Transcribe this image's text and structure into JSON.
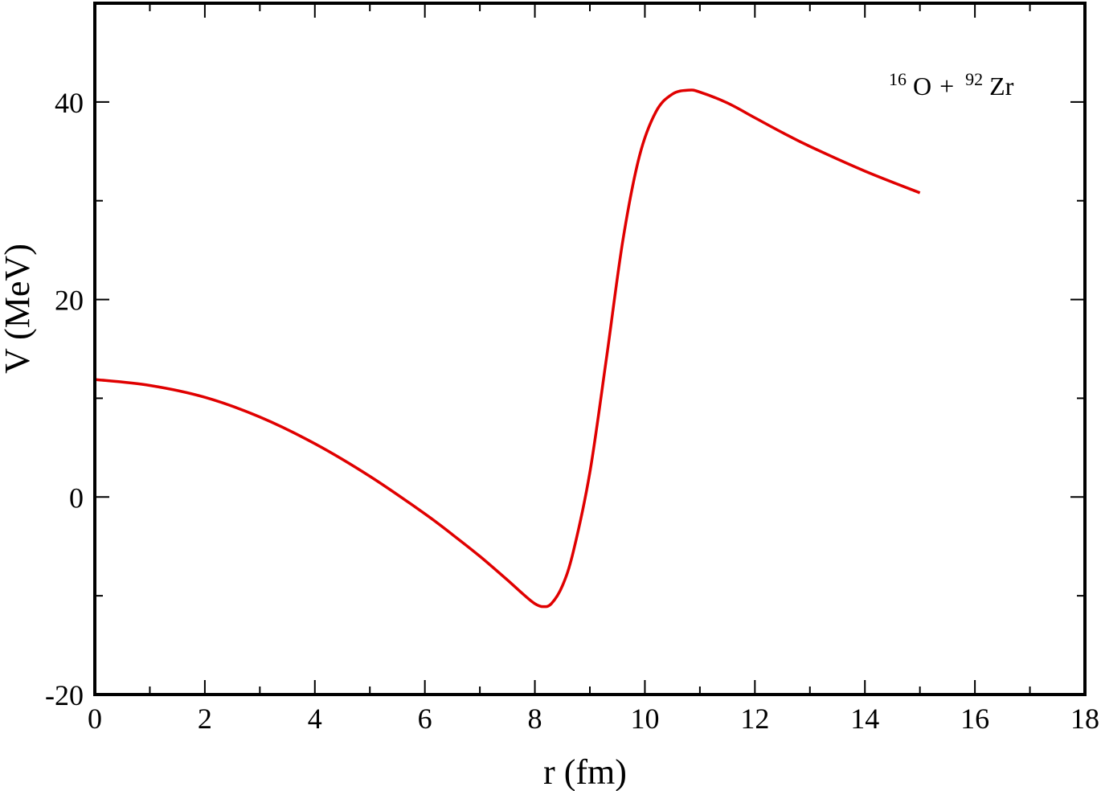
{
  "chart_data": {
    "type": "line",
    "xlabel": "r (fm)",
    "ylabel": "V (MeV)",
    "xlim": [
      0,
      18
    ],
    "ylim": [
      -20,
      50
    ],
    "x_ticks": [
      0,
      2,
      4,
      6,
      8,
      10,
      12,
      14,
      16,
      18
    ],
    "x_tick_labels": [
      "0",
      "2",
      "4",
      "6",
      "8",
      "10",
      "12",
      "14",
      "16",
      "18"
    ],
    "y_ticks": [
      -20,
      0,
      20,
      40
    ],
    "y_tick_labels": [
      "-20",
      "0",
      "20",
      "40"
    ],
    "x_minor_step": 1,
    "y_minor_step": 10,
    "grid": false,
    "annotation": {
      "mass_a": "16",
      "element_a": "O",
      "plus": "+",
      "mass_b": "92",
      "element_b": "Zr"
    },
    "series": [
      {
        "color": "#e00000",
        "x": [
          0,
          1,
          2,
          3,
          4,
          5,
          6,
          6.5,
          7,
          7.5,
          7.8,
          8,
          8.15,
          8.3,
          8.5,
          8.7,
          9.0,
          9.3,
          9.6,
          9.9,
          10.2,
          10.5,
          10.8,
          11.0,
          11.5,
          12.0,
          12.5,
          13.0,
          14.0,
          15.0
        ],
        "y": [
          11.9,
          11.3,
          10.1,
          8.1,
          5.4,
          2.1,
          -1.7,
          -3.8,
          -6.0,
          -8.4,
          -9.9,
          -10.8,
          -11.1,
          -10.8,
          -9.0,
          -5.5,
          2.5,
          14.0,
          26.0,
          34.5,
          39.0,
          40.8,
          41.2,
          41.0,
          39.9,
          38.4,
          36.9,
          35.5,
          33.0,
          30.8
        ]
      }
    ]
  }
}
